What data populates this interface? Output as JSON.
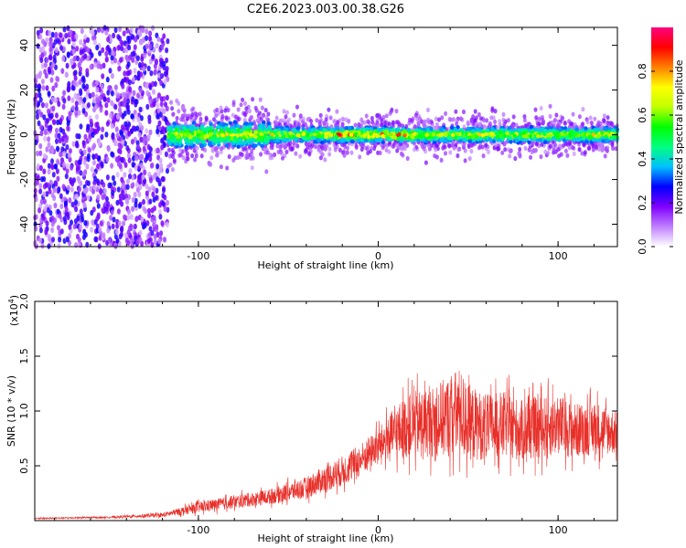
{
  "chart_data": [
    {
      "type": "heatmap",
      "title": "C2E6.2023.003.00.38.G26",
      "xlabel": "Height of straight line (km)",
      "ylabel": "Frequency (Hz)",
      "xlim": [
        -191,
        133
      ],
      "ylim": [
        -50,
        48
      ],
      "x_ticks": [
        -100,
        0,
        100
      ],
      "y_ticks": [
        -40,
        -20,
        0,
        20,
        40
      ],
      "colorbar": {
        "label": "Normalized spectral amplitude",
        "range": [
          0,
          1
        ],
        "ticks": [
          "0.0",
          "0.2",
          "0.4",
          "0.6",
          "0.8"
        ],
        "colors": [
          "#ffffff",
          "#c080ff",
          "#8000ff",
          "#0000ff",
          "#00c0ff",
          "#00ff80",
          "#00ff00",
          "#c0ff00",
          "#ffff00",
          "#ff8000",
          "#ff0000",
          "#ff0080"
        ]
      },
      "regions": [
        {
          "x_range": [
            -191,
            -117
          ],
          "freq_range": [
            -50,
            48
          ],
          "amplitude": 0.1
        },
        {
          "x_range": [
            -117,
            133
          ],
          "freq_center": 0,
          "freq_halfwidth": 6,
          "amplitude_range": [
            0.3,
            1.0
          ]
        }
      ],
      "grid": false
    },
    {
      "type": "line",
      "title": "",
      "xlabel": "Height of straight line (km)",
      "ylabel": "SNR (10 * v/v)",
      "y_multiplier": "(x10",
      "y_multiplier_exp": "4",
      "y_multiplier_close": ")",
      "xlim": [
        -191,
        133
      ],
      "ylim": [
        0,
        2.0
      ],
      "x_ticks": [
        -100,
        0,
        100
      ],
      "y_ticks": [
        "0.5",
        "1.0",
        "1.5",
        "2.0"
      ],
      "series": [
        {
          "color": "#e8302a",
          "x": [
            -191,
            -150,
            -120,
            -100,
            -80,
            -60,
            -40,
            -30,
            -20,
            -10,
            -5,
            0,
            5,
            10,
            15,
            20,
            30,
            40,
            45,
            50,
            60,
            70,
            80,
            90,
            100,
            110,
            120,
            133
          ],
          "y": [
            0.02,
            0.03,
            0.05,
            0.12,
            0.17,
            0.22,
            0.3,
            0.38,
            0.45,
            0.55,
            0.62,
            0.68,
            0.75,
            0.8,
            0.85,
            0.88,
            0.9,
            0.95,
            1.0,
            0.9,
            0.85,
            0.88,
            0.82,
            0.85,
            0.87,
            0.82,
            0.85,
            0.8
          ],
          "noise": [
            0.005,
            0.008,
            0.02,
            0.05,
            0.06,
            0.07,
            0.1,
            0.12,
            0.14,
            0.15,
            0.15,
            0.16,
            0.2,
            0.25,
            0.28,
            0.3,
            0.32,
            0.38,
            0.4,
            0.35,
            0.3,
            0.3,
            0.28,
            0.28,
            0.28,
            0.25,
            0.25,
            0.2
          ]
        }
      ],
      "grid": false
    }
  ]
}
